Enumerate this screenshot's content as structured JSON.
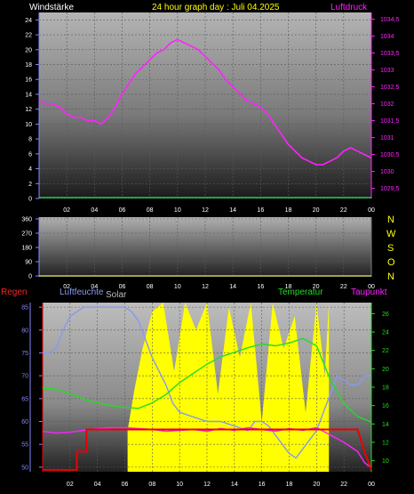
{
  "header": {
    "left_label": "Windstärke",
    "title": "24 hour graph day : Juli 04.2025",
    "right_label": "Luftdruck"
  },
  "compass": [
    "N",
    "W",
    "S",
    "O",
    "N"
  ],
  "bottom_labels": {
    "regen": "Regen",
    "luftfeuchte": "Luftfeuchte",
    "solar": "Solar",
    "temperatur": "Temperatur",
    "taupunkt": "Taupunkt"
  },
  "colors": {
    "pressure": "#ff22ff",
    "wind": "#22cc55",
    "direction_base": "#cccc55",
    "humidity": "#8899ee",
    "solar": "#ffff00",
    "temperature": "#22dd22",
    "dewpoint": "#ff22ff",
    "rain": "#ee0000",
    "header_left": "#ffffff",
    "header_title": "#ffff00",
    "header_right": "#ff22ff",
    "axis_left_top": "#8888ff",
    "axis_right_top": "#ff22ff",
    "axis_left_bottom": "#8888ff",
    "axis_right_bottom": "#22dd22",
    "regen_label": "#ff2222",
    "luftfeuchte_label": "#8899ee",
    "solar_label": "#bbbbbb",
    "temperatur_label": "#22dd22",
    "taupunkt_label": "#ff22ff",
    "compass": "#ffff00",
    "xtick": "#ffffff"
  },
  "chart_data": [
    {
      "type": "line",
      "title": "24 hour graph day : Juli 04.2025",
      "x_ticks": [
        "02",
        "04",
        "06",
        "08",
        "10",
        "12",
        "14",
        "16",
        "18",
        "20",
        "22",
        "00"
      ],
      "xlim": [
        0,
        24
      ],
      "left_axis": {
        "label": "Windstärke",
        "ticks": [
          "0",
          "2",
          "4",
          "6",
          "8",
          "10",
          "12",
          "14",
          "16",
          "18",
          "20",
          "22",
          "24"
        ],
        "ylim": [
          0,
          25
        ]
      },
      "right_axis": {
        "label": "Luftdruck",
        "ticks": [
          "1029,5",
          "1030",
          "1030,5",
          "1031",
          "1031,5",
          "1032",
          "1032,5",
          "1033",
          "1033,5",
          "1034",
          "1034,5"
        ],
        "ylim": [
          1029.2,
          1034.7
        ]
      },
      "series": [
        {
          "name": "Luftdruck",
          "axis": "right",
          "x": [
            0,
            0.5,
            1,
            1.5,
            2,
            2.5,
            3,
            3.5,
            4,
            4.5,
            5,
            5.5,
            6,
            6.5,
            7,
            7.5,
            8,
            8.5,
            9,
            9.5,
            10,
            10.5,
            11,
            11.5,
            12,
            12.5,
            13,
            13.5,
            14,
            14.5,
            15,
            15.5,
            16,
            16.5,
            17,
            17.5,
            18,
            18.5,
            19,
            19.5,
            20,
            20.5,
            21,
            21.5,
            22,
            22.5,
            23,
            23.5,
            24
          ],
          "y": [
            1032.1,
            1032.0,
            1032.0,
            1031.9,
            1031.7,
            1031.6,
            1031.6,
            1031.5,
            1031.5,
            1031.4,
            1031.6,
            1031.9,
            1032.3,
            1032.6,
            1032.9,
            1033.1,
            1033.3,
            1033.5,
            1033.6,
            1033.8,
            1033.9,
            1033.8,
            1033.7,
            1033.6,
            1033.4,
            1033.2,
            1033.0,
            1032.7,
            1032.5,
            1032.3,
            1032.1,
            1032.0,
            1031.9,
            1031.7,
            1031.4,
            1031.1,
            1030.8,
            1030.6,
            1030.4,
            1030.3,
            1030.2,
            1030.2,
            1030.3,
            1030.4,
            1030.6,
            1030.7,
            1030.6,
            1030.5,
            1030.4
          ]
        },
        {
          "name": "Windstärke",
          "axis": "left",
          "x": [
            0,
            24
          ],
          "y": [
            0,
            0
          ]
        }
      ]
    },
    {
      "type": "scatter",
      "x_ticks": [
        "02",
        "04",
        "06",
        "08",
        "10",
        "12",
        "14",
        "16",
        "18",
        "20",
        "22",
        "00"
      ],
      "xlim": [
        0,
        24
      ],
      "left_axis": {
        "ticks": [
          "0",
          "90",
          "180",
          "270",
          "360"
        ],
        "ylim": [
          0,
          360
        ]
      },
      "right_axis": {
        "ticks": [
          "N",
          "W",
          "S",
          "O",
          "N"
        ]
      },
      "series": [
        {
          "name": "Windrichtung",
          "x": [
            0,
            24
          ],
          "y": [
            0,
            0
          ]
        }
      ]
    },
    {
      "type": "line",
      "x_ticks": [
        "02",
        "04",
        "06",
        "08",
        "10",
        "12",
        "14",
        "16",
        "18",
        "20",
        "22",
        "00"
      ],
      "xlim": [
        0,
        24
      ],
      "left_axis": {
        "label": "Luftfeuchte",
        "ticks": [
          "50",
          "55",
          "60",
          "65",
          "70",
          "75",
          "80",
          "85"
        ],
        "ylim": [
          49,
          86
        ]
      },
      "right_axis": {
        "label": "Temperatur",
        "ticks": [
          "10",
          "12",
          "14",
          "16",
          "18",
          "20",
          "22",
          "24",
          "26"
        ],
        "ylim": [
          8.8,
          27.2
        ]
      },
      "series": [
        {
          "name": "Luftfeuchte",
          "axis": "left",
          "x": [
            0,
            0.5,
            1,
            1.5,
            2,
            3,
            4,
            5,
            6,
            6.5,
            7,
            7.5,
            8,
            8.5,
            9,
            9.5,
            10,
            11,
            12,
            13,
            14,
            15,
            15.5,
            16,
            16.5,
            17,
            17.5,
            18,
            18.5,
            19,
            19.5,
            20,
            20.5,
            21,
            21.5,
            22,
            22.5,
            23,
            23.5,
            24
          ],
          "y": [
            75,
            75,
            76,
            80,
            83,
            85,
            85,
            85,
            85,
            84,
            82,
            78,
            74,
            71,
            68,
            64,
            62,
            61,
            60,
            60,
            59,
            58,
            60,
            60,
            59,
            57,
            55,
            53,
            52,
            54,
            56,
            58,
            62,
            66,
            70,
            69,
            68,
            68,
            70,
            70
          ]
        },
        {
          "name": "Temperatur",
          "axis": "right",
          "x": [
            0,
            1,
            2,
            3,
            4,
            5,
            6,
            7,
            8,
            9,
            10,
            11,
            12,
            13,
            14,
            15,
            16,
            17,
            18,
            19,
            20,
            21,
            22,
            23,
            24
          ],
          "y": [
            17.9,
            17.8,
            17.3,
            16.7,
            16.3,
            16.0,
            15.8,
            15.7,
            16.3,
            17.2,
            18.5,
            19.5,
            20.5,
            21.3,
            21.8,
            22.3,
            22.7,
            22.5,
            22.8,
            23.3,
            22.5,
            18.8,
            16.2,
            14.8,
            14.2
          ]
        },
        {
          "name": "Taupunkt",
          "axis": "right",
          "x": [
            0,
            1,
            2,
            3,
            4,
            5,
            6,
            7,
            8,
            9,
            10,
            11,
            12,
            13,
            14,
            15,
            16,
            17,
            18,
            19,
            20,
            21,
            22,
            23,
            23.5,
            24
          ],
          "y": [
            13.2,
            13.0,
            13.1,
            13.3,
            13.5,
            13.6,
            13.6,
            13.5,
            13.4,
            13.2,
            13.3,
            13.4,
            13.2,
            13.5,
            13.3,
            13.6,
            13.4,
            13.2,
            13.5,
            13.3,
            13.6,
            12.8,
            12.0,
            11.0,
            9.8,
            9.2
          ]
        },
        {
          "name": "Regen",
          "axis": "right",
          "x": [
            0,
            2.5,
            2.5,
            3.2,
            3.2,
            21,
            21,
            23,
            23.5,
            24
          ],
          "y": [
            9,
            9,
            11,
            11,
            13.4,
            13.4,
            13.4,
            13.4,
            11,
            9
          ]
        },
        {
          "name": "Solar",
          "axis": "left",
          "x": [
            6.2,
            6.7,
            7.3,
            8.0,
            8.8,
            9.6,
            10.4,
            11.2,
            12.0,
            12.8,
            13.6,
            14.4,
            15.2,
            16.0,
            16.8,
            17.6,
            18.4,
            19.2,
            20.0,
            20.6,
            20.9
          ],
          "y": [
            58,
            67,
            76,
            84,
            86,
            71,
            86,
            80,
            86,
            66,
            85,
            74,
            86,
            60,
            86,
            76,
            83,
            62,
            86,
            70,
            86
          ]
        }
      ]
    }
  ]
}
